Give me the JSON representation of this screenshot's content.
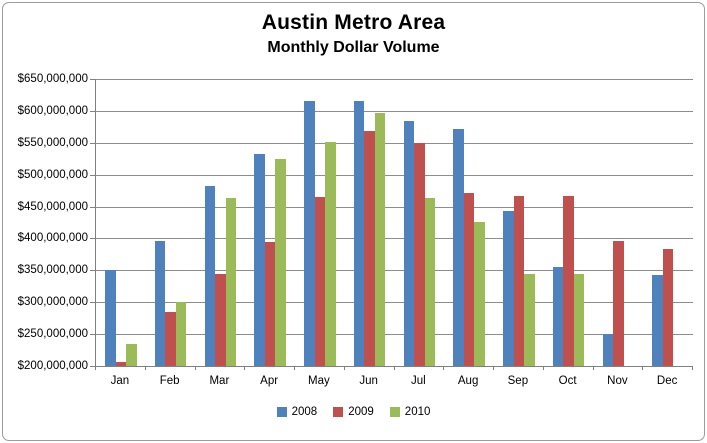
{
  "chart": {
    "title": "Austin Metro Area",
    "subtitle": "Monthly Dollar Volume"
  },
  "colors": {
    "background": "#ffffff",
    "border": "#9c9c9c",
    "gridline": "#8c8c8c",
    "axis": "#808080",
    "text": "#000000"
  },
  "chart_data": {
    "type": "bar",
    "title": "Austin Metro Area",
    "subtitle": "Monthly Dollar Volume",
    "categories": [
      "Jan",
      "Feb",
      "Mar",
      "Apr",
      "May",
      "Jun",
      "Jul",
      "Aug",
      "Sep",
      "Oct",
      "Nov",
      "Dec"
    ],
    "series": [
      {
        "name": "2008",
        "color": "#4F81BD",
        "values": [
          350000000,
          396000000,
          483000000,
          532000000,
          615000000,
          616000000,
          584000000,
          571000000,
          443000000,
          355000000,
          251000000,
          342000000
        ]
      },
      {
        "name": "2009",
        "color": "#C0504D",
        "values": [
          206000000,
          285000000,
          345000000,
          394000000,
          465000000,
          569000000,
          550000000,
          472000000,
          467000000,
          467000000,
          396000000,
          384000000
        ]
      },
      {
        "name": "2010",
        "color": "#9BBB59",
        "values": [
          235000000,
          300000000,
          463000000,
          524000000,
          551000000,
          597000000,
          463000000,
          426000000,
          344000000,
          345000000,
          null,
          null
        ]
      }
    ],
    "xlabel": "",
    "ylabel": "",
    "ylim": [
      200000000,
      650000000
    ],
    "ytick_step": 50000000,
    "ytick_labels_top_to_bottom": [
      "$650,000,000",
      "$600,000,000",
      "$550,000,000",
      "$500,000,000",
      "$450,000,000",
      "$400,000,000",
      "$350,000,000",
      "$300,000,000",
      "$250,000,000",
      "$200,000,000"
    ],
    "grid": true,
    "legend_position": "bottom"
  }
}
